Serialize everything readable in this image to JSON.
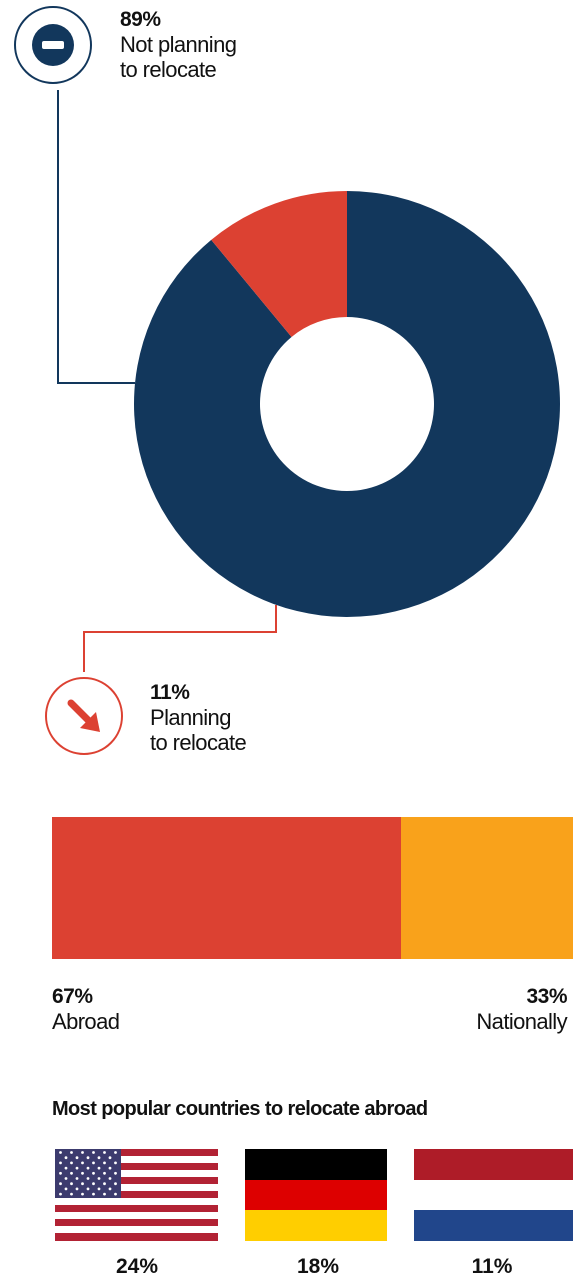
{
  "colors": {
    "navy": "#12375c",
    "red": "#dc4132",
    "orange": "#f9a21b",
    "white": "#ffffff"
  },
  "chart_data": [
    {
      "type": "pie",
      "values": [
        89,
        11
      ],
      "labels": [
        "Not planning to relocate",
        "Planning to relocate"
      ],
      "callouts": [
        {
          "pct": "89%",
          "line1": "Not planning",
          "line2": "to relocate",
          "icon": "minus-icon"
        },
        {
          "pct": "11%",
          "line1": "Planning",
          "line2": "to relocate",
          "icon": "arrow-down-right-icon"
        }
      ]
    },
    {
      "type": "bar",
      "categories": [
        "Abroad",
        "Nationally"
      ],
      "values": [
        67,
        33
      ],
      "pct_labels": [
        "67%",
        "33%"
      ]
    },
    {
      "type": "table",
      "title": "Most popular countries to relocate abroad",
      "countries": [
        {
          "flag": "us-flag-icon",
          "pct": "24%",
          "value": 24
        },
        {
          "flag": "germany-flag-icon",
          "pct": "18%",
          "value": 18
        },
        {
          "flag": "netherlands-flag-icon",
          "pct": "11%",
          "value": 11
        }
      ]
    }
  ]
}
